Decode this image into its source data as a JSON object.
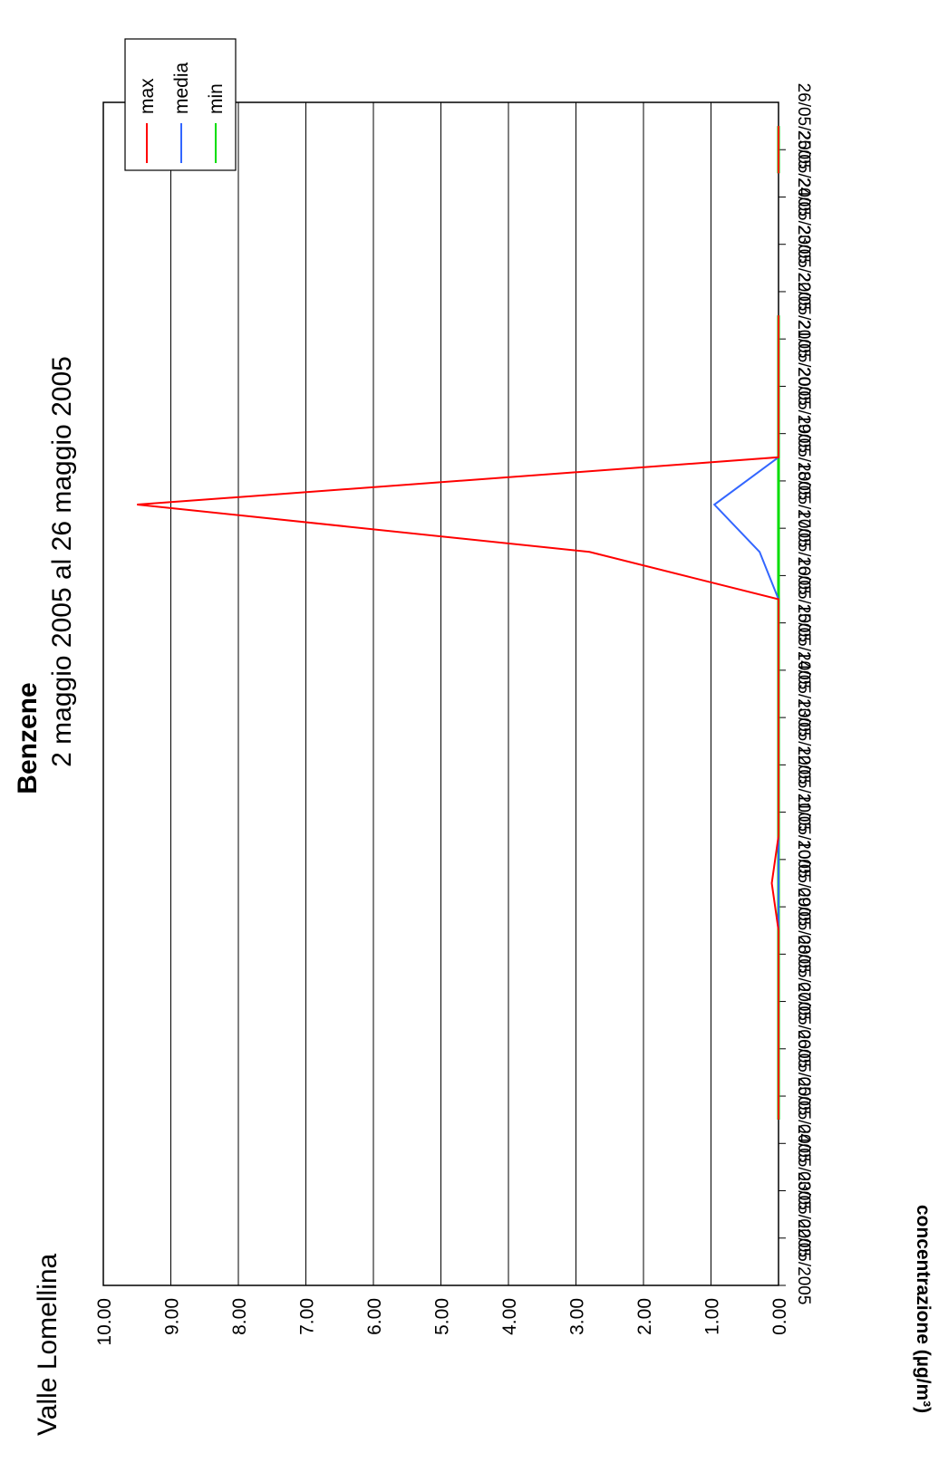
{
  "header": {
    "station": "Valle Lomellina",
    "pollutant": "Benzene",
    "period": "2 maggio 2005 al 26 maggio 2005"
  },
  "chart_data": {
    "type": "line",
    "title": "Benzene",
    "subtitle": "2 maggio 2005 al 26 maggio 2005",
    "ylabel": "concentrazione (µg/m³)",
    "xlabel": "",
    "ylim": [
      0,
      10
    ],
    "yticks": [
      "0.00",
      "1.00",
      "2.00",
      "3.00",
      "4.00",
      "5.00",
      "6.00",
      "7.00",
      "8.00",
      "9.00",
      "10.00"
    ],
    "grid": "horizontal",
    "legend_position": "top-right",
    "categories": [
      "02/05/2005",
      "03/05/2005",
      "04/05/2005",
      "05/05/2005",
      "06/05/2005",
      "07/05/2005",
      "08/05/2005",
      "09/05/2005",
      "10/05/2005",
      "11/05/2005",
      "12/05/2005",
      "13/05/2005",
      "14/05/2005",
      "15/05/2005",
      "16/05/2005",
      "17/05/2005",
      "18/05/2005",
      "19/05/2005",
      "20/05/2005",
      "21/05/2005",
      "22/05/2005",
      "23/05/2005",
      "24/05/2005",
      "25/05/2005",
      "26/05/2005"
    ],
    "series": [
      {
        "name": "max",
        "color": "#ff0000",
        "values": [
          null,
          null,
          null,
          0,
          0,
          0,
          0,
          0,
          0.1,
          0,
          0,
          0,
          0,
          0,
          0,
          2.8,
          9.5,
          0,
          0,
          0,
          0,
          null,
          null,
          0,
          0
        ]
      },
      {
        "name": "media",
        "color": "#3366ff",
        "values": [
          null,
          null,
          null,
          0,
          0,
          0,
          0,
          0,
          0,
          0,
          0,
          0,
          0,
          0,
          0,
          0.28,
          0.95,
          0,
          0,
          0,
          0,
          null,
          null,
          0,
          0
        ]
      },
      {
        "name": "min",
        "color": "#00dd00",
        "values": [
          null,
          null,
          null,
          0,
          0,
          0,
          0,
          0,
          0,
          0,
          0,
          0,
          0,
          0,
          0,
          0,
          0,
          0,
          0,
          0,
          0,
          null,
          null,
          0,
          0
        ]
      }
    ]
  }
}
